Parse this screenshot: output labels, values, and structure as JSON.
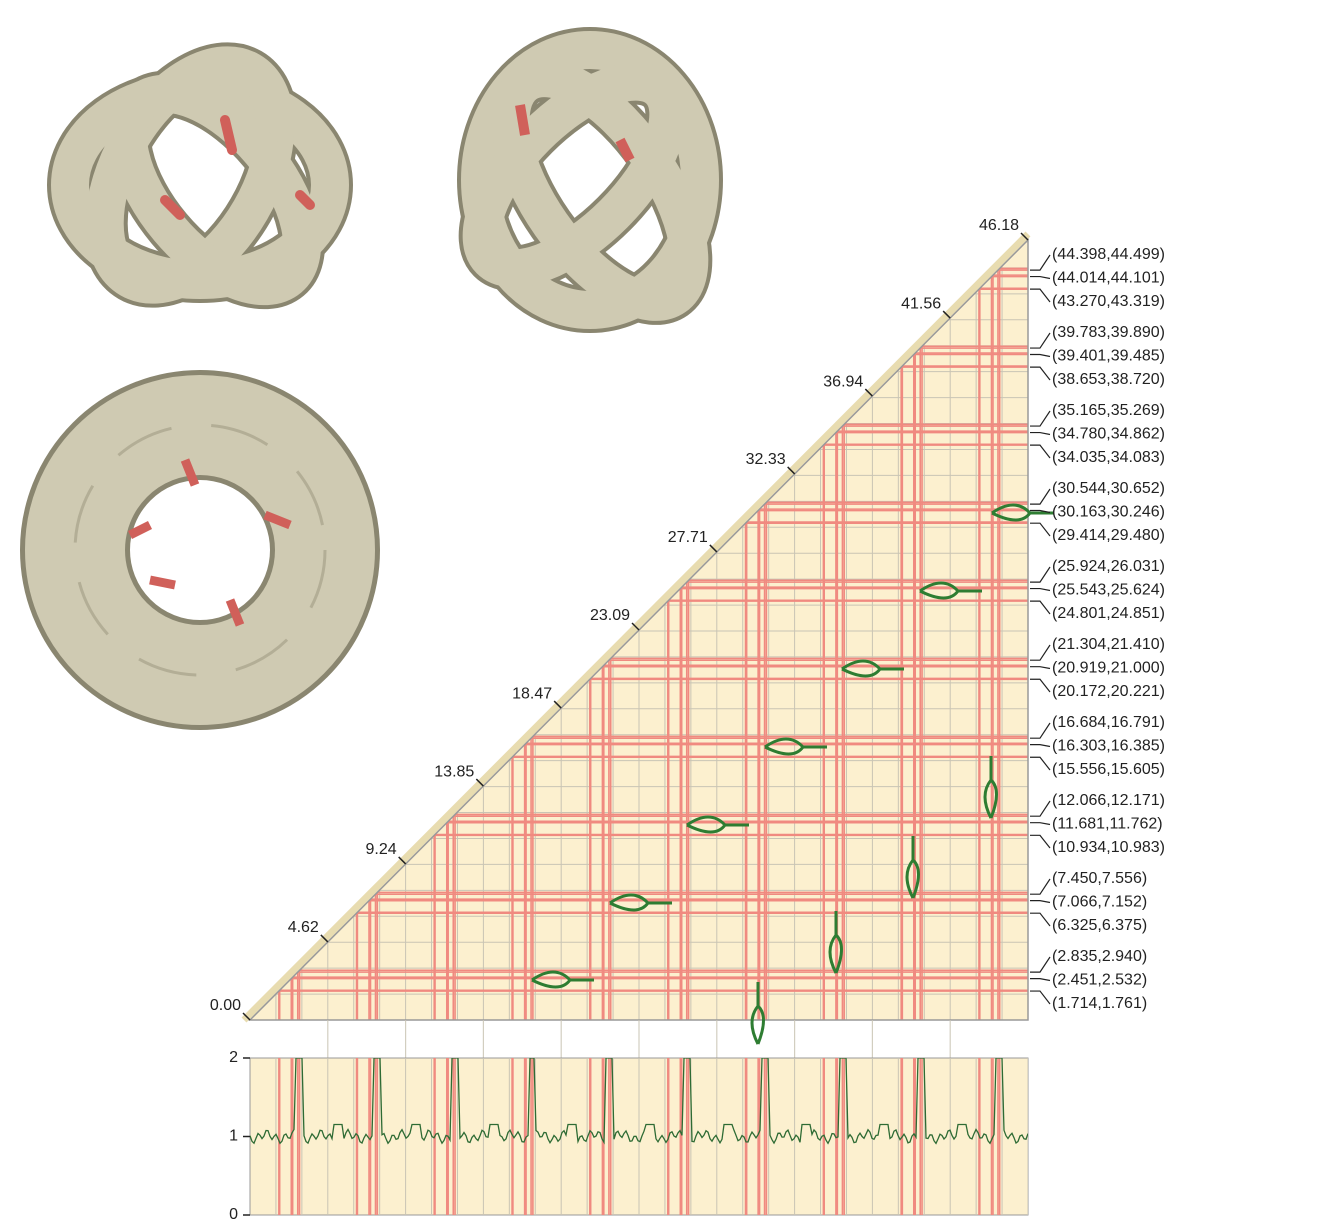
{
  "triangle": {
    "diagonal_ticks": [
      {
        "value": 0,
        "label": "0.00"
      },
      {
        "value": 4.62,
        "label": "4.62"
      },
      {
        "value": 9.24,
        "label": "9.24"
      },
      {
        "value": 13.85,
        "label": "13.85"
      },
      {
        "value": 18.47,
        "label": "18.47"
      },
      {
        "value": 23.09,
        "label": "23.09"
      },
      {
        "value": 27.71,
        "label": "27.71"
      },
      {
        "value": 32.33,
        "label": "32.33"
      },
      {
        "value": 36.94,
        "label": "36.94"
      },
      {
        "value": 41.56,
        "label": "41.56"
      },
      {
        "value": 46.18,
        "label": "46.18"
      }
    ],
    "right_labels": [
      "(44.398,44.499)",
      "(44.014,44.101)",
      "(43.270,43.319)",
      "(39.783,39.890)",
      "(39.401,39.485)",
      "(38.653,38.720)",
      "(35.165,35.269)",
      "(34.780,34.862)",
      "(34.035,34.083)",
      "(30.544,30.652)",
      "(30.163,30.246)",
      "(29.414,29.480)",
      "(25.924,26.031)",
      "(25.543,25.624)",
      "(24.801,24.851)",
      "(21.304,21.410)",
      "(20.919,21.000)",
      "(20.172,20.221)",
      "(16.684,16.791)",
      "(16.303,16.385)",
      "(15.556,15.605)",
      "(12.066,12.171)",
      "(11.681,11.762)",
      "(10.934,10.983)",
      "(7.450,7.556)",
      "(7.066,7.152)",
      "(6.325,6.375)",
      "(2.835,2.940)",
      "(2.451,2.532)",
      "(1.714,1.761)"
    ]
  },
  "line_plot": {
    "yticks": [
      0,
      1,
      2
    ]
  }
}
